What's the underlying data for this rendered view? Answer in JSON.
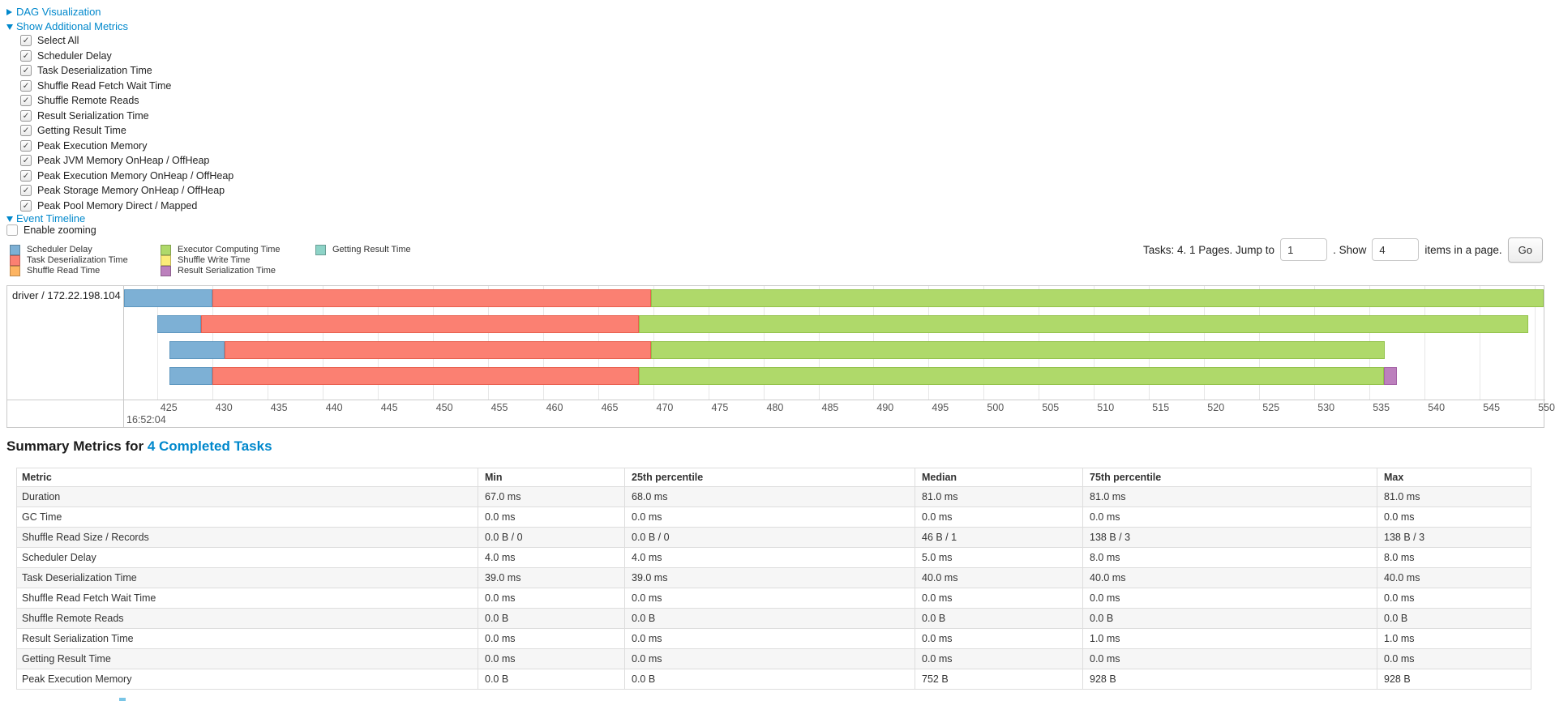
{
  "controls": {
    "dag": {
      "label": "DAG Visualization"
    },
    "additional_metrics": {
      "label": "Show Additional Metrics",
      "items": [
        {
          "label": "Select All",
          "checked": true
        },
        {
          "label": "Scheduler Delay",
          "checked": true
        },
        {
          "label": "Task Deserialization Time",
          "checked": true
        },
        {
          "label": "Shuffle Read Fetch Wait Time",
          "checked": true
        },
        {
          "label": "Shuffle Remote Reads",
          "checked": true
        },
        {
          "label": "Result Serialization Time",
          "checked": true
        },
        {
          "label": "Getting Result Time",
          "checked": true
        },
        {
          "label": "Peak Execution Memory",
          "checked": true
        },
        {
          "label": "Peak JVM Memory OnHeap / OffHeap",
          "checked": true
        },
        {
          "label": "Peak Execution Memory OnHeap / OffHeap",
          "checked": true
        },
        {
          "label": "Peak Storage Memory OnHeap / OffHeap",
          "checked": true
        },
        {
          "label": "Peak Pool Memory Direct / Mapped",
          "checked": true
        }
      ]
    },
    "event_timeline_label": "Event Timeline",
    "enable_zooming": {
      "label": "Enable zooming",
      "checked": false
    }
  },
  "pagination": {
    "prefix": "Tasks: 4. 1 Pages. Jump to",
    "jump_value": "1",
    "mid": ". Show",
    "show_value": "4",
    "suffix": "items in a page.",
    "go_label": "Go"
  },
  "chart_data": {
    "type": "timeline",
    "group_label": "driver / 172.22.198.104",
    "x_axis": {
      "min": 422.0,
      "max": 550.8,
      "tick_start": 425,
      "tick_end": 550,
      "tick_step": 5,
      "unit": "ms",
      "time_label": "16:52:04",
      "grid": true
    },
    "series": {
      "scheduler_delay": {
        "label": "Scheduler Delay",
        "fill": "#7DB0D5",
        "border": "#5E97BF"
      },
      "task_deserialization": {
        "label": "Task Deserialization Time",
        "fill": "#FB8072",
        "border": "#E8604F"
      },
      "shuffle_read": {
        "label": "Shuffle Read Time",
        "fill": "#FDB462",
        "border": "#E29A44"
      },
      "executor_computing": {
        "label": "Executor Computing Time",
        "fill": "#AFD96A",
        "border": "#93C24B"
      },
      "shuffle_write": {
        "label": "Shuffle Write Time",
        "fill": "#FBEC79",
        "border": "#DFCE55"
      },
      "result_serialization": {
        "label": "Result Serialization Time",
        "fill": "#BC80BD",
        "border": "#A563A6"
      },
      "getting_result": {
        "label": "Getting Result Time",
        "fill": "#8DD3C7",
        "border": "#6BB8AA"
      }
    },
    "legend_columns": [
      [
        "scheduler_delay",
        "task_deserialization",
        "shuffle_read"
      ],
      [
        "executor_computing",
        "shuffle_write",
        "result_serialization"
      ],
      [
        "getting_result"
      ]
    ],
    "tasks": [
      {
        "segments": [
          [
            "scheduler_delay",
            422.0,
            430.0
          ],
          [
            "task_deserialization",
            430.0,
            469.8
          ],
          [
            "executor_computing",
            469.8,
            550.8
          ]
        ]
      },
      {
        "segments": [
          [
            "scheduler_delay",
            425.0,
            429.0
          ],
          [
            "task_deserialization",
            429.0,
            468.7
          ],
          [
            "executor_computing",
            468.7,
            549.4
          ]
        ]
      },
      {
        "segments": [
          [
            "scheduler_delay",
            426.1,
            431.1
          ],
          [
            "task_deserialization",
            431.1,
            469.8
          ],
          [
            "executor_computing",
            469.8,
            536.4
          ]
        ]
      },
      {
        "segments": [
          [
            "scheduler_delay",
            426.1,
            430.0
          ],
          [
            "task_deserialization",
            430.0,
            468.7
          ],
          [
            "executor_computing",
            468.7,
            536.3
          ],
          [
            "result_serialization",
            536.3,
            537.5
          ]
        ]
      }
    ]
  },
  "summary": {
    "title_prefix": "Summary Metrics for ",
    "title_link": "4 Completed Tasks",
    "table": {
      "headers": [
        "Metric",
        "Min",
        "25th percentile",
        "Median",
        "75th percentile",
        "Max"
      ],
      "rows": [
        [
          "Duration",
          "67.0 ms",
          "68.0 ms",
          "81.0 ms",
          "81.0 ms",
          "81.0 ms"
        ],
        [
          "GC Time",
          "0.0 ms",
          "0.0 ms",
          "0.0 ms",
          "0.0 ms",
          "0.0 ms"
        ],
        [
          "Shuffle Read Size / Records",
          "0.0 B / 0",
          "0.0 B / 0",
          "46 B / 1",
          "138 B / 3",
          "138 B / 3"
        ],
        [
          "Scheduler Delay",
          "4.0 ms",
          "4.0 ms",
          "5.0 ms",
          "8.0 ms",
          "8.0 ms"
        ],
        [
          "Task Deserialization Time",
          "39.0 ms",
          "39.0 ms",
          "40.0 ms",
          "40.0 ms",
          "40.0 ms"
        ],
        [
          "Shuffle Read Fetch Wait Time",
          "0.0 ms",
          "0.0 ms",
          "0.0 ms",
          "0.0 ms",
          "0.0 ms"
        ],
        [
          "Shuffle Remote Reads",
          "0.0 B",
          "0.0 B",
          "0.0 B",
          "0.0 B",
          "0.0 B"
        ],
        [
          "Result Serialization Time",
          "0.0 ms",
          "0.0 ms",
          "0.0 ms",
          "1.0 ms",
          "1.0 ms"
        ],
        [
          "Getting Result Time",
          "0.0 ms",
          "0.0 ms",
          "0.0 ms",
          "0.0 ms",
          "0.0 ms"
        ],
        [
          "Peak Execution Memory",
          "0.0 B",
          "0.0 B",
          "752 B",
          "928 B",
          "928 B"
        ]
      ]
    }
  }
}
